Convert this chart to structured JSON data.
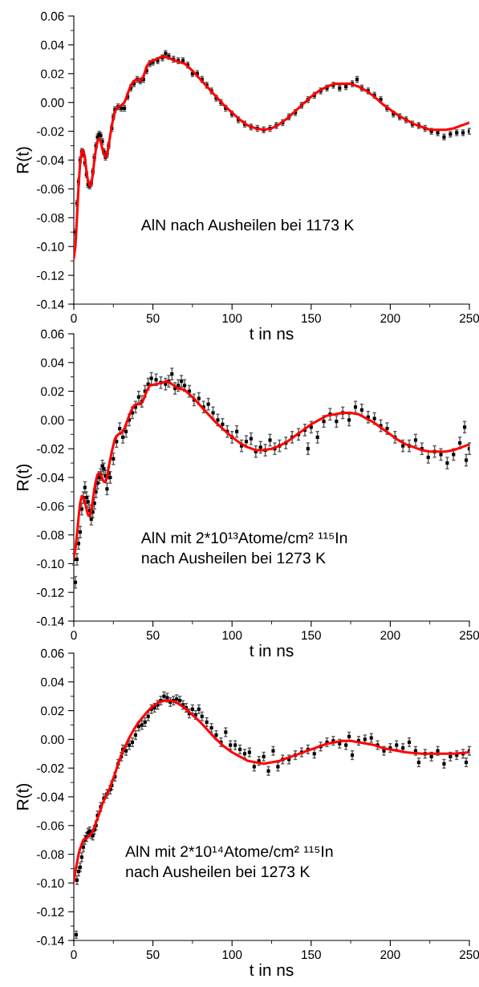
{
  "chart_data": [
    {
      "type": "scatter",
      "xlabel": "t in ns",
      "ylabel": "R(t)",
      "annotations": [
        "AlN nach Ausheilen bei 1173 K"
      ],
      "xlim": [
        0,
        250
      ],
      "xticks": [
        0,
        50,
        100,
        150,
        200,
        250
      ],
      "ylim": [
        -0.14,
        0.06
      ],
      "yticks": [
        {
          "value": 0.06,
          "label": "0.06"
        },
        {
          "value": 0.04,
          "label": "0.04"
        },
        {
          "value": 0.02,
          "label": "0.02"
        },
        {
          "value": 0,
          "label": "0.00"
        },
        {
          "value": -0.02,
          "label": "-0.02"
        },
        {
          "value": -0.04,
          "label": "-0.04"
        },
        {
          "value": -0.06,
          "label": "-0.06"
        },
        {
          "value": -0.08,
          "label": "-0.08"
        },
        {
          "value": -0.1,
          "label": "-0.10"
        },
        {
          "value": -0.12,
          "label": "-0.12"
        },
        {
          "value": -0.14,
          "label": "-0.14"
        }
      ],
      "series": [
        {
          "marker": "square",
          "color": "#000000",
          "x": [
            1,
            2,
            3,
            4,
            5,
            6,
            7,
            8,
            9,
            10,
            11,
            12,
            13,
            14,
            15,
            16,
            17,
            18,
            19,
            20,
            21,
            22,
            24,
            25,
            26,
            28,
            30,
            32,
            34,
            36,
            38,
            40,
            42,
            44,
            46,
            48,
            50,
            53,
            56,
            58,
            60,
            63,
            66,
            69,
            72,
            75,
            78,
            81,
            84,
            87,
            90,
            93,
            96,
            100,
            104,
            108,
            112,
            116,
            120,
            124,
            128,
            132,
            136,
            140,
            144,
            148,
            152,
            156,
            160,
            164,
            168,
            172,
            176,
            179,
            182,
            186,
            190,
            194,
            198,
            202,
            206,
            210,
            214,
            218,
            222,
            226,
            230,
            234,
            238,
            242,
            246,
            250
          ],
          "values": [
            -0.09,
            -0.07,
            -0.055,
            -0.04,
            -0.034,
            -0.036,
            -0.042,
            -0.05,
            -0.057,
            -0.058,
            -0.056,
            -0.048,
            -0.038,
            -0.03,
            -0.024,
            -0.022,
            -0.023,
            -0.027,
            -0.034,
            -0.038,
            -0.036,
            -0.03,
            -0.018,
            -0.01,
            -0.005,
            -0.003,
            -0.004,
            -0.004,
            0.004,
            0.01,
            0.013,
            0.016,
            0.015,
            0.016,
            0.022,
            0.027,
            0.028,
            0.029,
            0.031,
            0.034,
            0.032,
            0.03,
            0.029,
            0.029,
            0.026,
            0.02,
            0.02,
            0.016,
            0.012,
            0.008,
            0.003,
            0.0,
            -0.004,
            -0.008,
            -0.012,
            -0.015,
            -0.017,
            -0.018,
            -0.019,
            -0.018,
            -0.016,
            -0.014,
            -0.01,
            -0.007,
            -0.002,
            0.002,
            0.005,
            0.008,
            0.01,
            0.012,
            0.01,
            0.011,
            0.013,
            0.016,
            0.01,
            0.008,
            0.005,
            0.002,
            -0.004,
            -0.008,
            -0.01,
            -0.012,
            -0.015,
            -0.016,
            -0.018,
            -0.02,
            -0.021,
            -0.024,
            -0.022,
            -0.021,
            -0.021,
            -0.02
          ],
          "errors": [
            0.002,
            0.002,
            0.002,
            0.002,
            0.002,
            0.002,
            0.002,
            0.002,
            0.002,
            0.002,
            0.002,
            0.002,
            0.002,
            0.002,
            0.002,
            0.002,
            0.002,
            0.002,
            0.002,
            0.002,
            0.002,
            0.002,
            0.002,
            0.002,
            0.002,
            0.002,
            0.002,
            0.002,
            0.002,
            0.002,
            0.002,
            0.002,
            0.002,
            0.002,
            0.002,
            0.002,
            0.002,
            0.002,
            0.002,
            0.002,
            0.002,
            0.002,
            0.002,
            0.002,
            0.002,
            0.002,
            0.002,
            0.002,
            0.002,
            0.002,
            0.002,
            0.002,
            0.002,
            0.002,
            0.002,
            0.002,
            0.002,
            0.002,
            0.002,
            0.002,
            0.002,
            0.002,
            0.002,
            0.002,
            0.002,
            0.002,
            0.002,
            0.002,
            0.002,
            0.002,
            0.002,
            0.002,
            0.002,
            0.002,
            0.002,
            0.002,
            0.002,
            0.002,
            0.002,
            0.002,
            0.002,
            0.002,
            0.002,
            0.002,
            0.002,
            0.002,
            0.002,
            0.002,
            0.002,
            0.002,
            0.002,
            0.002
          ]
        },
        {
          "type": "line",
          "color": "#ff0000",
          "x": [
            0,
            1,
            2,
            3,
            4,
            5,
            6,
            7,
            8,
            9,
            10,
            11,
            12,
            13,
            14,
            15,
            16,
            17,
            18,
            19,
            20,
            21,
            22,
            24,
            26,
            28,
            30,
            32,
            34,
            36,
            38,
            40,
            42,
            44,
            46,
            48,
            52,
            56,
            60,
            64,
            70,
            75,
            80,
            85,
            90,
            95,
            100,
            105,
            110,
            115,
            120,
            125,
            130,
            135,
            140,
            145,
            150,
            155,
            160,
            165,
            170,
            175,
            180,
            185,
            190,
            195,
            200,
            205,
            210,
            215,
            220,
            225,
            230,
            235,
            240,
            245,
            250
          ],
          "values": [
            -0.108,
            -0.1,
            -0.08,
            -0.058,
            -0.042,
            -0.034,
            -0.033,
            -0.038,
            -0.048,
            -0.055,
            -0.058,
            -0.057,
            -0.05,
            -0.04,
            -0.032,
            -0.027,
            -0.025,
            -0.027,
            -0.032,
            -0.036,
            -0.038,
            -0.037,
            -0.03,
            -0.016,
            -0.006,
            -0.003,
            -0.002,
            0.0,
            0.006,
            0.012,
            0.015,
            0.016,
            0.015,
            0.018,
            0.025,
            0.028,
            0.03,
            0.032,
            0.031,
            0.029,
            0.027,
            0.022,
            0.016,
            0.01,
            0.004,
            -0.002,
            -0.007,
            -0.012,
            -0.016,
            -0.018,
            -0.019,
            -0.018,
            -0.015,
            -0.011,
            -0.006,
            -0.001,
            0.004,
            0.008,
            0.011,
            0.013,
            0.013,
            0.013,
            0.011,
            0.008,
            0.004,
            -0.001,
            -0.005,
            -0.009,
            -0.012,
            -0.015,
            -0.017,
            -0.019,
            -0.019,
            -0.019,
            -0.018,
            -0.016,
            -0.014
          ]
        }
      ]
    },
    {
      "type": "scatter",
      "xlabel": "t in ns",
      "ylabel": "R(t)",
      "annotations": [
        "AlN mit 2*10¹³Atome/cm² ¹¹⁵In\nnach Ausheilen bei 1273 K"
      ],
      "xlim": [
        0,
        250
      ],
      "xticks": [
        0,
        50,
        100,
        150,
        200,
        250
      ],
      "ylim": [
        -0.14,
        0.06
      ],
      "yticks": [
        {
          "value": 0.06,
          "label": "0.06"
        },
        {
          "value": 0.04,
          "label": "0.04"
        },
        {
          "value": 0.02,
          "label": "0.02"
        },
        {
          "value": 0,
          "label": "0.00"
        },
        {
          "value": -0.02,
          "label": "-0.02"
        },
        {
          "value": -0.04,
          "label": "-0.04"
        },
        {
          "value": -0.06,
          "label": "-0.06"
        },
        {
          "value": -0.08,
          "label": "-0.08"
        },
        {
          "value": -0.1,
          "label": "-0.10"
        },
        {
          "value": -0.12,
          "label": "-0.12"
        },
        {
          "value": -0.14,
          "label": "-0.14"
        }
      ],
      "series": [
        {
          "marker": "square",
          "color": "#000000",
          "x": [
            0,
            1,
            2,
            3,
            4,
            5,
            6,
            7,
            8,
            9,
            10,
            11,
            12,
            13,
            14,
            15,
            16,
            17,
            18,
            19,
            20,
            21,
            22,
            23,
            25,
            27,
            29,
            31,
            33,
            35,
            37,
            39,
            41,
            43,
            45,
            47,
            49,
            52,
            55,
            58,
            60,
            62,
            64,
            66,
            68,
            70,
            73,
            76,
            79,
            82,
            85,
            88,
            91,
            94,
            97,
            100,
            103,
            106,
            109,
            112,
            115,
            118,
            121,
            124,
            127,
            130,
            134,
            138,
            142,
            146,
            148,
            150,
            154,
            158,
            162,
            166,
            170,
            174,
            178,
            182,
            186,
            190,
            194,
            198,
            203,
            208,
            212,
            216,
            220,
            224,
            228,
            232,
            236,
            240,
            244,
            247,
            248,
            250
          ],
          "values": [
            -0.097,
            -0.113,
            -0.097,
            -0.086,
            -0.078,
            -0.062,
            -0.054,
            -0.047,
            -0.054,
            -0.057,
            -0.063,
            -0.069,
            -0.064,
            -0.058,
            -0.05,
            -0.044,
            -0.04,
            -0.038,
            -0.032,
            -0.034,
            -0.039,
            -0.048,
            -0.037,
            -0.04,
            -0.027,
            -0.015,
            -0.006,
            -0.012,
            -0.008,
            0.0,
            0.005,
            0.009,
            0.016,
            0.013,
            0.02,
            0.025,
            0.029,
            0.028,
            0.026,
            0.025,
            0.027,
            0.032,
            0.022,
            0.024,
            0.027,
            0.024,
            0.02,
            0.014,
            0.015,
            0.009,
            0.011,
            0.005,
            0.0,
            -0.003,
            -0.008,
            -0.012,
            -0.008,
            -0.018,
            -0.015,
            -0.013,
            -0.022,
            -0.019,
            -0.021,
            -0.014,
            -0.02,
            -0.018,
            -0.016,
            -0.012,
            -0.01,
            -0.007,
            -0.02,
            -0.005,
            -0.012,
            -0.001,
            0.004,
            -0.001,
            0.005,
            0.0,
            0.009,
            0.007,
            0.002,
            0.001,
            -0.004,
            -0.006,
            -0.012,
            -0.018,
            -0.018,
            -0.014,
            -0.02,
            -0.026,
            -0.022,
            -0.024,
            -0.03,
            -0.024,
            -0.016,
            -0.005,
            -0.028,
            -0.02
          ],
          "errors": [
            0.004,
            0.004,
            0.004,
            0.004,
            0.004,
            0.004,
            0.004,
            0.004,
            0.004,
            0.004,
            0.004,
            0.004,
            0.004,
            0.004,
            0.004,
            0.004,
            0.004,
            0.004,
            0.004,
            0.004,
            0.004,
            0.004,
            0.004,
            0.004,
            0.004,
            0.004,
            0.004,
            0.004,
            0.004,
            0.004,
            0.004,
            0.004,
            0.004,
            0.004,
            0.004,
            0.004,
            0.004,
            0.004,
            0.004,
            0.004,
            0.004,
            0.004,
            0.004,
            0.004,
            0.004,
            0.004,
            0.004,
            0.004,
            0.004,
            0.004,
            0.004,
            0.004,
            0.004,
            0.004,
            0.004,
            0.004,
            0.004,
            0.004,
            0.004,
            0.004,
            0.004,
            0.004,
            0.004,
            0.004,
            0.004,
            0.004,
            0.004,
            0.004,
            0.004,
            0.004,
            0.004,
            0.004,
            0.004,
            0.004,
            0.004,
            0.004,
            0.004,
            0.004,
            0.004,
            0.004,
            0.004,
            0.004,
            0.004,
            0.004,
            0.004,
            0.004,
            0.004,
            0.004,
            0.004,
            0.004,
            0.004,
            0.004,
            0.004,
            0.004,
            0.004,
            0.004,
            0.004,
            0.004
          ]
        },
        {
          "type": "line",
          "color": "#ff0000",
          "x": [
            0,
            1,
            2,
            3,
            4,
            5,
            6,
            7,
            8,
            9,
            10,
            11,
            12,
            13,
            14,
            15,
            16,
            17,
            18,
            19,
            20,
            21,
            22,
            24,
            26,
            28,
            30,
            32,
            34,
            36,
            38,
            40,
            42,
            44,
            46,
            48,
            52,
            56,
            59,
            62,
            66,
            70,
            75,
            80,
            85,
            90,
            95,
            100,
            105,
            110,
            115,
            120,
            125,
            130,
            135,
            140,
            145,
            150,
            155,
            160,
            165,
            170,
            175,
            180,
            185,
            190,
            195,
            200,
            205,
            210,
            215,
            220,
            225,
            230,
            235,
            240,
            245,
            250
          ],
          "values": [
            -0.096,
            -0.09,
            -0.08,
            -0.068,
            -0.058,
            -0.053,
            -0.054,
            -0.057,
            -0.062,
            -0.066,
            -0.067,
            -0.063,
            -0.056,
            -0.048,
            -0.042,
            -0.038,
            -0.037,
            -0.038,
            -0.041,
            -0.043,
            -0.043,
            -0.04,
            -0.033,
            -0.022,
            -0.013,
            -0.01,
            -0.009,
            -0.006,
            0.0,
            0.006,
            0.01,
            0.011,
            0.011,
            0.014,
            0.02,
            0.024,
            0.025,
            0.026,
            0.027,
            0.025,
            0.022,
            0.021,
            0.016,
            0.01,
            0.004,
            -0.002,
            -0.007,
            -0.012,
            -0.016,
            -0.019,
            -0.021,
            -0.021,
            -0.02,
            -0.018,
            -0.015,
            -0.011,
            -0.007,
            -0.003,
            0.0,
            0.003,
            0.004,
            0.005,
            0.005,
            0.004,
            0.001,
            -0.002,
            -0.006,
            -0.01,
            -0.014,
            -0.017,
            -0.019,
            -0.021,
            -0.022,
            -0.022,
            -0.022,
            -0.021,
            -0.019,
            -0.017
          ]
        }
      ]
    },
    {
      "type": "scatter",
      "xlabel": "t in ns",
      "ylabel": "R(t)",
      "annotations": [
        "AlN mit 2*10¹⁴Atome/cm² ¹¹⁵In\nnach Ausheilen bei 1273 K"
      ],
      "xlim": [
        0,
        250
      ],
      "xticks": [
        0,
        50,
        100,
        150,
        200,
        250
      ],
      "ylim": [
        -0.14,
        0.06
      ],
      "yticks": [
        {
          "value": 0.06,
          "label": "0.06"
        },
        {
          "value": 0.04,
          "label": "0.04"
        },
        {
          "value": 0.02,
          "label": "0.02"
        },
        {
          "value": 0,
          "label": "0.00"
        },
        {
          "value": -0.02,
          "label": "-0.02"
        },
        {
          "value": -0.04,
          "label": "-0.04"
        },
        {
          "value": -0.06,
          "label": "-0.06"
        },
        {
          "value": -0.08,
          "label": "-0.08"
        },
        {
          "value": -0.1,
          "label": "-0.10"
        },
        {
          "value": -0.12,
          "label": "-0.12"
        },
        {
          "value": -0.14,
          "label": "-0.14"
        }
      ],
      "series": [
        {
          "marker": "square",
          "color": "#000000",
          "x": [
            1.5,
            2,
            3,
            4,
            5,
            6,
            7,
            8,
            9,
            10,
            11,
            12,
            13,
            14,
            15,
            17,
            19,
            21,
            23,
            24,
            26,
            28,
            30,
            31,
            33,
            35,
            37,
            39,
            41,
            43,
            45,
            47,
            49,
            51,
            53,
            55,
            57,
            59,
            61,
            63,
            65,
            67,
            69,
            71,
            73,
            75,
            77,
            79,
            81,
            84,
            87,
            90,
            93,
            96,
            99,
            102,
            105,
            108,
            111,
            114,
            117,
            120,
            123,
            126,
            129,
            132,
            136,
            140,
            144,
            148,
            152,
            156,
            160,
            164,
            168,
            172,
            174,
            176,
            180,
            184,
            188,
            192,
            196,
            200,
            204,
            208,
            212,
            216,
            218,
            222,
            226,
            230,
            234,
            238,
            242,
            246,
            248,
            250
          ],
          "values": [
            -0.136,
            -0.098,
            -0.092,
            -0.089,
            -0.082,
            -0.075,
            -0.07,
            -0.068,
            -0.065,
            -0.064,
            -0.066,
            -0.067,
            -0.063,
            -0.06,
            -0.053,
            -0.047,
            -0.041,
            -0.038,
            -0.035,
            -0.032,
            -0.026,
            -0.017,
            -0.012,
            -0.007,
            -0.008,
            -0.004,
            -0.002,
            0.003,
            0.009,
            0.01,
            0.012,
            0.016,
            0.021,
            0.022,
            0.024,
            0.027,
            0.03,
            0.029,
            0.026,
            0.027,
            0.028,
            0.027,
            0.024,
            0.022,
            0.018,
            0.021,
            0.017,
            0.021,
            0.016,
            0.012,
            0.008,
            0.003,
            -0.002,
            0.005,
            -0.004,
            -0.004,
            -0.007,
            -0.01,
            -0.009,
            -0.019,
            -0.015,
            -0.012,
            -0.022,
            -0.008,
            -0.019,
            -0.014,
            -0.014,
            -0.011,
            -0.009,
            -0.007,
            -0.01,
            -0.005,
            -0.002,
            -0.001,
            -0.003,
            -0.004,
            0.002,
            -0.011,
            -0.001,
            0.0,
            0.001,
            -0.004,
            -0.008,
            -0.006,
            -0.004,
            -0.006,
            -0.002,
            -0.008,
            -0.016,
            -0.01,
            -0.012,
            -0.008,
            -0.017,
            -0.012,
            -0.011,
            -0.01,
            -0.016,
            -0.008
          ],
          "errors": [
            0.0025,
            0.003,
            0.003,
            0.003,
            0.003,
            0.003,
            0.003,
            0.003,
            0.003,
            0.003,
            0.003,
            0.003,
            0.003,
            0.003,
            0.003,
            0.003,
            0.003,
            0.003,
            0.003,
            0.003,
            0.003,
            0.003,
            0.003,
            0.003,
            0.003,
            0.003,
            0.003,
            0.003,
            0.003,
            0.003,
            0.003,
            0.003,
            0.003,
            0.003,
            0.003,
            0.003,
            0.003,
            0.003,
            0.003,
            0.003,
            0.003,
            0.003,
            0.003,
            0.003,
            0.003,
            0.003,
            0.003,
            0.003,
            0.003,
            0.003,
            0.003,
            0.003,
            0.003,
            0.003,
            0.003,
            0.003,
            0.003,
            0.003,
            0.003,
            0.003,
            0.003,
            0.003,
            0.003,
            0.003,
            0.003,
            0.003,
            0.003,
            0.003,
            0.003,
            0.003,
            0.003,
            0.003,
            0.003,
            0.003,
            0.003,
            0.003,
            0.003,
            0.003,
            0.003,
            0.003,
            0.003,
            0.003,
            0.003,
            0.003,
            0.003,
            0.003,
            0.003,
            0.003,
            0.003,
            0.003,
            0.003,
            0.003,
            0.003,
            0.003,
            0.003,
            0.003,
            0.003,
            0.003
          ]
        },
        {
          "type": "line",
          "color": "#ff0000",
          "x": [
            0,
            1,
            2,
            3,
            4,
            5,
            6,
            8,
            10,
            12,
            14,
            16,
            18,
            20,
            22,
            24,
            26,
            28,
            30,
            32,
            35,
            38,
            41,
            44,
            47,
            50,
            54,
            58,
            62,
            66,
            70,
            75,
            80,
            85,
            90,
            95,
            100,
            105,
            110,
            115,
            120,
            125,
            130,
            135,
            140,
            145,
            150,
            155,
            160,
            165,
            170,
            175,
            180,
            185,
            190,
            195,
            200,
            205,
            210,
            220,
            230,
            240,
            250
          ],
          "values": [
            -0.099,
            -0.092,
            -0.086,
            -0.08,
            -0.076,
            -0.073,
            -0.07,
            -0.069,
            -0.067,
            -0.064,
            -0.058,
            -0.052,
            -0.045,
            -0.04,
            -0.036,
            -0.03,
            -0.024,
            -0.017,
            -0.011,
            -0.006,
            0.001,
            0.007,
            0.012,
            0.016,
            0.02,
            0.023,
            0.026,
            0.027,
            0.027,
            0.025,
            0.022,
            0.017,
            0.012,
            0.006,
            0.0,
            -0.005,
            -0.009,
            -0.012,
            -0.015,
            -0.016,
            -0.017,
            -0.016,
            -0.015,
            -0.013,
            -0.011,
            -0.009,
            -0.007,
            -0.005,
            -0.003,
            -0.002,
            -0.001,
            -0.001,
            -0.002,
            -0.003,
            -0.004,
            -0.006,
            -0.007,
            -0.008,
            -0.009,
            -0.01,
            -0.01,
            -0.01,
            -0.009
          ]
        }
      ]
    }
  ]
}
